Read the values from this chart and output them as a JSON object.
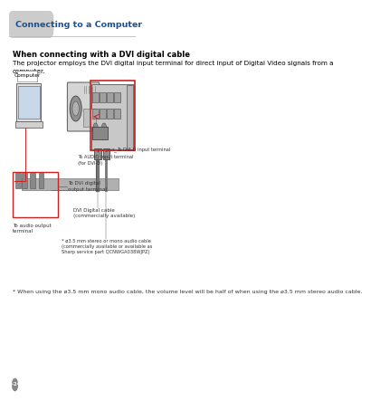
{
  "title": "Connecting to a Computer",
  "section_title": "When connecting with a DVI digital cable",
  "body_text1": "The projector employs the DVI digital input terminal for direct input of Digital Video signals from a",
  "body_text2": "computer.",
  "footnote": "* When using the ø3.5 mm mono audio cable, the volume level will be half of when using the ø3.5 mm stereo audio cable.",
  "page_number": "①-24",
  "title_color": "#1a5296",
  "bg_color": "#ffffff",
  "tab_bg": "#cccccc",
  "border_color": "#cc2222",
  "text_color": "#000000",
  "gray_line": "#aaaaaa",
  "diagram_labels": {
    "computer": "Computer",
    "dvi_digital": "To DVI digital\noutput terminal",
    "audio_output": "To audio output\nterminal",
    "audio_input": "To AUDIO input terminal\n(for DVI-D)",
    "dvi_cable": "DVI Digital cable\n(commercially available)",
    "audio_cable": "* ø3.5 mm stereo or mono audio cable\n(commercially available or available as\nSharp service part QCNWGA038WJPZ)",
    "dvi_d_input": "To DVI-D input terminal"
  }
}
